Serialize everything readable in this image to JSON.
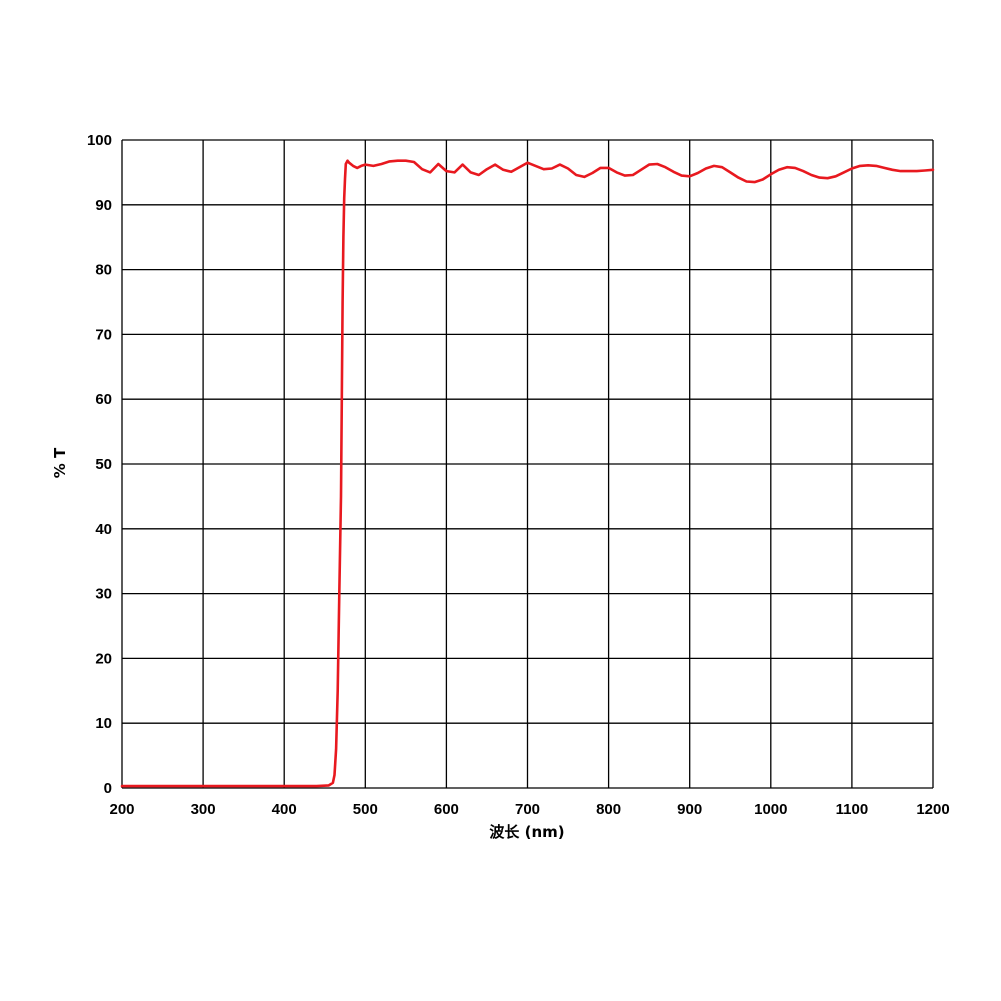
{
  "chart_data": {
    "type": "line",
    "title": "",
    "xlabel": "波长 (nm)",
    "ylabel": "% T",
    "xlim": [
      200,
      1200
    ],
    "ylim": [
      0,
      100
    ],
    "grid": true,
    "legend": "none",
    "x_ticks": [
      "200",
      "300",
      "400",
      "500",
      "600",
      "700",
      "800",
      "900",
      "1000",
      "1100",
      "1200"
    ],
    "y_ticks": [
      "0",
      "10",
      "20",
      "30",
      "40",
      "50",
      "60",
      "70",
      "80",
      "90",
      "100"
    ],
    "series": [
      {
        "color": "#e8191f",
        "x": [
          200,
          300,
          400,
          440,
          455,
          460,
          462,
          464,
          466,
          468,
          470,
          471,
          472,
          473,
          474,
          475,
          476,
          478,
          480,
          485,
          490,
          495,
          500,
          510,
          520,
          530,
          540,
          550,
          560,
          570,
          580,
          590,
          600,
          610,
          620,
          630,
          640,
          650,
          660,
          670,
          680,
          690,
          700,
          710,
          720,
          730,
          740,
          750,
          760,
          770,
          780,
          790,
          800,
          810,
          820,
          830,
          840,
          850,
          860,
          870,
          880,
          890,
          900,
          910,
          920,
          930,
          940,
          950,
          960,
          970,
          980,
          990,
          1000,
          1010,
          1020,
          1030,
          1040,
          1050,
          1060,
          1070,
          1080,
          1090,
          1100,
          1110,
          1120,
          1130,
          1140,
          1150,
          1160,
          1170,
          1180,
          1190,
          1200
        ],
        "y": [
          0.3,
          0.3,
          0.3,
          0.3,
          0.4,
          0.8,
          2,
          6,
          15,
          30,
          45,
          60,
          75,
          85,
          91,
          94,
          96.3,
          96.8,
          96.5,
          96.0,
          95.7,
          96.0,
          96.2,
          96.0,
          96.3,
          96.7,
          96.8,
          96.8,
          96.6,
          95.5,
          95.0,
          96.3,
          95.2,
          95.0,
          96.2,
          95.0,
          94.6,
          95.5,
          96.2,
          95.4,
          95.1,
          95.8,
          96.5,
          96.0,
          95.5,
          95.6,
          96.2,
          95.6,
          94.6,
          94.3,
          94.9,
          95.7,
          95.7,
          95.0,
          94.5,
          94.6,
          95.4,
          96.2,
          96.3,
          95.8,
          95.1,
          94.5,
          94.4,
          94.9,
          95.6,
          96.0,
          95.8,
          95.0,
          94.2,
          93.6,
          93.5,
          93.9,
          94.7,
          95.4,
          95.8,
          95.7,
          95.2,
          94.6,
          94.2,
          94.1,
          94.4,
          95.0,
          95.6,
          96.0,
          96.1,
          96.0,
          95.7,
          95.4,
          95.2,
          95.2,
          95.2,
          95.3,
          95.4
        ]
      }
    ]
  }
}
